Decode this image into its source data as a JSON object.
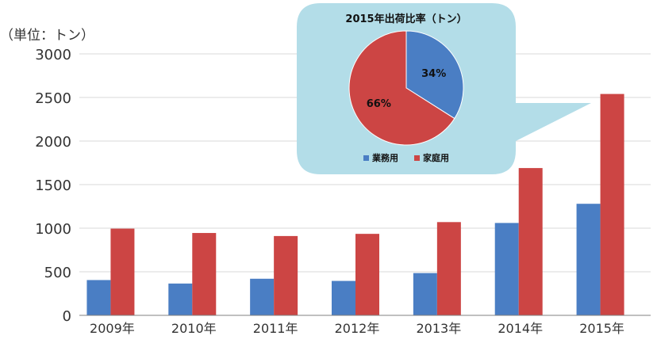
{
  "chart_data": [
    {
      "type": "bar",
      "unit_label": "（単位：トン）",
      "categories": [
        "2009年",
        "2010年",
        "2011年",
        "2012年",
        "2013年",
        "2014年",
        "2015年"
      ],
      "series": [
        {
          "values": [
            405,
            365,
            420,
            395,
            485,
            1060,
            1280
          ],
          "color": "#4a7ec4"
        },
        {
          "values": [
            995,
            945,
            910,
            935,
            1070,
            1690,
            2540
          ],
          "color": "#cc4544"
        }
      ],
      "ylim": [
        0,
        3000
      ],
      "yticks": [
        0,
        500,
        1000,
        1500,
        2000,
        2500,
        3000
      ],
      "grid": true
    },
    {
      "type": "pie",
      "title": "2015年出荷比率（トン）",
      "slices": [
        {
          "name": "業務用",
          "value": 34,
          "label": "34%",
          "color": "#4a7ec4"
        },
        {
          "name": "家庭用",
          "value": 66,
          "label": "66%",
          "color": "#cc4544"
        }
      ],
      "legend": "bottom",
      "callout_fill": "#b3dde8"
    }
  ]
}
